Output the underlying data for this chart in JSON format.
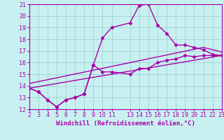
{
  "background_color": "#c8f0f0",
  "grid_color": "#a0d0d0",
  "line_color": "#aa00aa",
  "marker": "D",
  "markersize": 2.5,
  "linewidth": 1.0,
  "xlabel": "Windchill (Refroidissement éolien,°C)",
  "xlabel_fontsize": 6.5,
  "tick_fontsize": 6.0,
  "xlim": [
    2,
    23
  ],
  "ylim": [
    12,
    21
  ],
  "yticks": [
    12,
    13,
    14,
    15,
    16,
    17,
    18,
    19,
    20,
    21
  ],
  "xticks": [
    2,
    3,
    4,
    5,
    6,
    7,
    8,
    9,
    10,
    11,
    13,
    14,
    15,
    16,
    17,
    18,
    19,
    20,
    21,
    22,
    23
  ],
  "series": [
    {
      "x": [
        2,
        3,
        4,
        5,
        6,
        7,
        8,
        9,
        10,
        11,
        13,
        14,
        15,
        16,
        17,
        18,
        19,
        20,
        21,
        22,
        23
      ],
      "y": [
        13.8,
        13.5,
        12.8,
        12.2,
        12.8,
        13.0,
        13.3,
        15.8,
        18.1,
        19.0,
        19.4,
        20.9,
        21.0,
        19.2,
        18.5,
        17.5,
        17.5,
        17.3,
        17.1,
        16.7,
        16.6
      ]
    },
    {
      "x": [
        2,
        3,
        4,
        5,
        6,
        7,
        8,
        9,
        10,
        11,
        13,
        14,
        15,
        16,
        17,
        18,
        19,
        20,
        21,
        22,
        23
      ],
      "y": [
        13.8,
        13.5,
        12.8,
        12.2,
        12.8,
        13.0,
        13.3,
        15.8,
        15.2,
        15.2,
        15.0,
        15.5,
        15.5,
        16.0,
        16.2,
        16.3,
        16.6,
        16.5,
        16.6,
        16.6,
        16.6
      ]
    },
    {
      "x": [
        2,
        23
      ],
      "y": [
        13.8,
        16.6
      ],
      "no_marker": true
    },
    {
      "x": [
        2,
        21,
        23
      ],
      "y": [
        14.2,
        17.3,
        16.9
      ],
      "no_marker": true
    }
  ]
}
